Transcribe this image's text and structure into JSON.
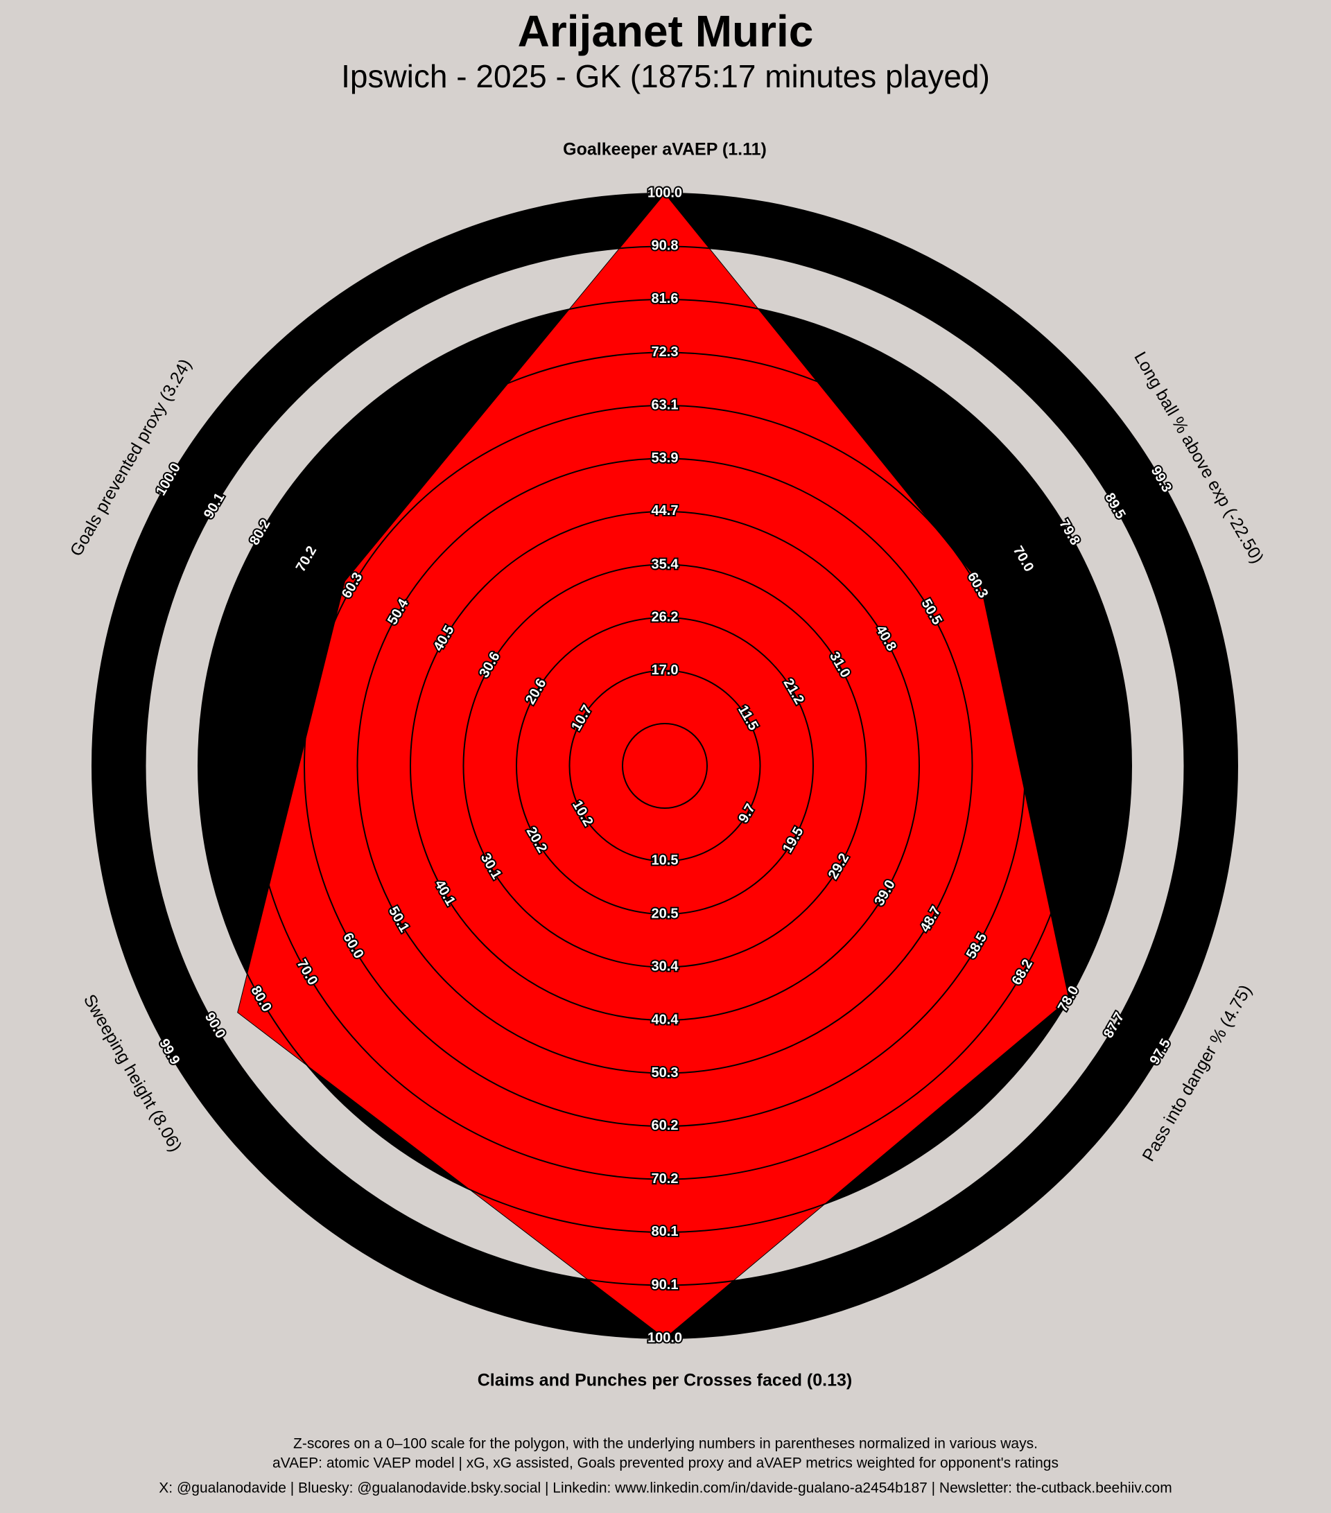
{
  "chart_data": {
    "type": "radar",
    "title": "Arijanet Muric",
    "subtitle": "Ipswich - 2025 - GK (1875:17 minutes played)",
    "color": "#ff0000",
    "axes": [
      {
        "label": "Goalkeeper aVAEP (1.11)",
        "lim": [
          7.8,
          100
        ],
        "ticks": [
          {
            "value": 17,
            "label": "17.0"
          },
          26.2,
          35.4,
          44.7,
          53.9,
          63.1,
          72.3,
          81.6,
          90.8,
          {
            "value": 100,
            "label": "100.0"
          }
        ]
      },
      {
        "label": "Long ball % above exp (-22.50)",
        "lim": [
          1.7,
          99.3
        ],
        "ticks": [
          11.5,
          21.2,
          {
            "value": 31,
            "label": "31.0"
          },
          40.8,
          50.5,
          60.3,
          {
            "value": 70,
            "label": "70.0"
          },
          79.8,
          89.5,
          99.3
        ]
      },
      {
        "label": "Pass into danger % (4.75)",
        "lim": [
          -0.1,
          97.5
        ],
        "ticks": [
          9.7,
          19.5,
          29.2,
          {
            "value": 39,
            "label": "39.0"
          },
          48.7,
          58.5,
          68.2,
          {
            "value": 78,
            "label": "78.0"
          },
          87.7,
          97.5
        ]
      },
      {
        "label": "Claims and Punches per Crosses faced (0.13)",
        "lim": [
          0.6,
          100
        ],
        "ticks": [
          10.5,
          20.5,
          30.4,
          40.4,
          50.3,
          60.2,
          70.2,
          80.1,
          90.1,
          {
            "value": 100,
            "label": "100.0"
          }
        ]
      },
      {
        "label": "Sweeping height (8.06)",
        "lim": [
          0.2,
          99.9
        ],
        "ticks": [
          10.2,
          20.2,
          30.1,
          40.1,
          50.1,
          {
            "value": 60,
            "label": "60.0"
          },
          {
            "value": 70,
            "label": "70.0"
          },
          {
            "value": 80,
            "label": "80.0"
          },
          {
            "value": 90,
            "label": "90.0"
          },
          99.9
        ]
      },
      {
        "label": "Goals prevented proxy (3.24)",
        "lim": [
          0.8,
          100
        ],
        "ticks": [
          10.7,
          20.6,
          30.6,
          40.5,
          50.4,
          60.3,
          70.2,
          80.2,
          90.1,
          {
            "value": 100,
            "label": "100.0"
          }
        ]
      }
    ],
    "values": [
      100,
      61,
      78,
      100,
      85,
      62
    ],
    "footnotes": [
      "Z-scores on a 0–100 scale for the polygon, with the underlying numbers in parentheses normalized in various ways.",
      "aVAEP: atomic VAEP model | xG, xG assisted, Goals prevented proxy and aVAEP metrics weighted for opponent's ratings",
      "X: @gualanodavide | Bluesky: @gualanodavide.bsky.social | Linkedin: www.linkedin.com/in/davide-gualano-a2454b187 | Newsletter: the-cutback.beehiiv.com"
    ]
  }
}
